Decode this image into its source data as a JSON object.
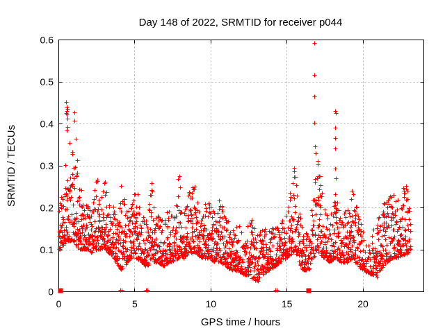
{
  "page": {
    "background": "#ffffff"
  },
  "chart_data": {
    "type": "scatter",
    "title": "Day 148 of 2022, SRMTID for receiver p044",
    "xlabel": "GPS time / hours",
    "ylabel": "SRMTID / TECUs",
    "xlim": [
      0,
      24
    ],
    "ylim": [
      0,
      0.6
    ],
    "xticks": [
      0,
      5,
      10,
      15,
      20
    ],
    "yticks": [
      0,
      0.1,
      0.2,
      0.3,
      0.4,
      0.5,
      0.6
    ],
    "grid": true,
    "legend": "none",
    "marker": {
      "shape": "plus",
      "color": "#ff0000",
      "size": 7
    },
    "colors": {
      "grid": "#b0b0b0",
      "axis": "#000000",
      "text": "#000000"
    },
    "series_name": "SRMTID",
    "data_span_hours": [
      0.03,
      23.15
    ],
    "seed": 148,
    "points_estimate": 2400,
    "envelope_bins": [
      [
        0.05,
        0.1,
        0.21
      ],
      [
        0.3,
        0.11,
        0.25
      ],
      [
        0.55,
        0.12,
        0.32
      ],
      [
        0.8,
        0.12,
        0.3
      ],
      [
        1.05,
        0.12,
        0.3
      ],
      [
        1.3,
        0.1,
        0.28
      ],
      [
        1.6,
        0.1,
        0.23
      ],
      [
        1.9,
        0.1,
        0.21
      ],
      [
        2.2,
        0.09,
        0.2
      ],
      [
        2.5,
        0.1,
        0.29
      ],
      [
        2.75,
        0.1,
        0.22
      ],
      [
        3.05,
        0.1,
        0.27
      ],
      [
        3.35,
        0.09,
        0.22
      ],
      [
        3.65,
        0.08,
        0.2
      ],
      [
        3.95,
        0.06,
        0.18
      ],
      [
        4.2,
        0.05,
        0.28
      ],
      [
        4.5,
        0.07,
        0.19
      ],
      [
        4.8,
        0.08,
        0.21
      ],
      [
        5.1,
        0.08,
        0.26
      ],
      [
        5.4,
        0.07,
        0.19
      ],
      [
        5.8,
        0.06,
        0.17
      ],
      [
        6.2,
        0.07,
        0.29
      ],
      [
        6.5,
        0.07,
        0.19
      ],
      [
        6.9,
        0.06,
        0.17
      ],
      [
        7.3,
        0.07,
        0.2
      ],
      [
        7.6,
        0.07,
        0.18
      ],
      [
        7.9,
        0.08,
        0.3
      ],
      [
        8.2,
        0.08,
        0.19
      ],
      [
        8.5,
        0.09,
        0.22
      ],
      [
        8.8,
        0.09,
        0.29
      ],
      [
        9.1,
        0.09,
        0.22
      ],
      [
        9.45,
        0.08,
        0.2
      ],
      [
        9.9,
        0.08,
        0.25
      ],
      [
        10.2,
        0.07,
        0.19
      ],
      [
        10.6,
        0.07,
        0.23
      ],
      [
        11.0,
        0.06,
        0.18
      ],
      [
        11.4,
        0.05,
        0.16
      ],
      [
        11.8,
        0.05,
        0.17
      ],
      [
        12.2,
        0.04,
        0.14,
        0.8
      ],
      [
        12.65,
        0.04,
        0.19
      ],
      [
        13.0,
        0.02,
        0.13,
        0.8
      ],
      [
        13.4,
        0.04,
        0.15
      ],
      [
        13.8,
        0.05,
        0.15
      ],
      [
        14.2,
        0.06,
        0.16
      ],
      [
        14.6,
        0.07,
        0.17
      ],
      [
        15.0,
        0.08,
        0.19
      ],
      [
        15.3,
        0.09,
        0.25
      ],
      [
        15.55,
        0.1,
        0.32
      ],
      [
        15.8,
        0.07,
        0.19
      ],
      [
        16.1,
        0.05,
        0.16
      ],
      [
        16.5,
        0.05,
        0.13,
        0.7
      ],
      [
        16.8,
        0.08,
        0.26
      ],
      [
        16.95,
        0.1,
        0.34
      ],
      [
        17.15,
        0.09,
        0.3
      ],
      [
        17.45,
        0.08,
        0.22
      ],
      [
        17.8,
        0.07,
        0.19
      ],
      [
        18.2,
        0.08,
        0.23
      ],
      [
        18.6,
        0.07,
        0.19
      ],
      [
        19.0,
        0.07,
        0.2
      ],
      [
        19.35,
        0.08,
        0.25
      ],
      [
        19.7,
        0.06,
        0.19
      ],
      [
        20.1,
        0.05,
        0.14,
        0.8
      ],
      [
        20.5,
        0.04,
        0.12,
        0.7
      ],
      [
        20.9,
        0.04,
        0.17
      ],
      [
        21.2,
        0.05,
        0.2
      ],
      [
        21.6,
        0.07,
        0.22
      ],
      [
        22.0,
        0.08,
        0.25
      ],
      [
        22.4,
        0.08,
        0.22
      ],
      [
        22.8,
        0.09,
        0.26
      ],
      [
        23.0,
        0.09,
        0.24
      ],
      [
        23.15,
        0.09,
        0.18
      ]
    ],
    "outliers": [
      [
        0.46,
        0.301
      ],
      [
        0.5,
        0.425
      ],
      [
        0.52,
        0.452
      ],
      [
        0.55,
        0.44
      ],
      [
        0.55,
        0.43
      ],
      [
        0.56,
        0.421
      ],
      [
        0.55,
        0.383
      ],
      [
        0.59,
        0.392
      ],
      [
        0.6,
        0.435
      ],
      [
        0.61,
        0.411
      ],
      [
        0.73,
        0.353
      ],
      [
        0.9,
        0.333
      ],
      [
        0.91,
        0.328
      ],
      [
        1.06,
        0.427
      ],
      [
        1.07,
        0.406
      ],
      [
        1.14,
        0.364
      ],
      [
        1.22,
        0.312
      ],
      [
        16.82,
        0.592
      ],
      [
        16.83,
        0.515
      ],
      [
        16.83,
        0.465
      ],
      [
        16.82,
        0.401
      ],
      [
        16.85,
        0.345
      ],
      [
        18.18,
        0.43
      ],
      [
        18.22,
        0.424
      ],
      [
        18.2,
        0.39
      ],
      [
        18.18,
        0.366
      ],
      [
        18.21,
        0.341
      ],
      [
        18.19,
        0.292
      ],
      [
        18.22,
        0.27
      ],
      [
        18.2,
        0.232
      ],
      [
        12.7,
        0.032
      ],
      [
        20.92,
        0.035
      ]
    ],
    "zero_square_markers": [
      0.12,
      16.43
    ],
    "zero_plus_markers": [
      4.07,
      4.17,
      5.76,
      5.86,
      14.27,
      14.36
    ]
  }
}
